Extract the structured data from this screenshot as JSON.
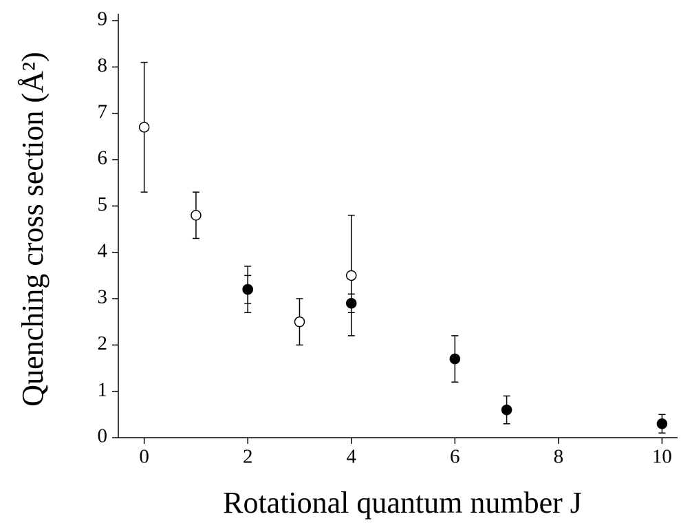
{
  "chart_data": {
    "type": "scatter",
    "xlabel": "Rotational quantum number J",
    "ylabel": "Quenching cross section (Å²)",
    "xlim": [
      -0.5,
      10.3
    ],
    "xticks": [
      0,
      2,
      4,
      6,
      8,
      10
    ],
    "ylim": [
      0,
      9
    ],
    "yticks": [
      0,
      1,
      2,
      3,
      4,
      5,
      6,
      7,
      8,
      9
    ],
    "grid": false,
    "series": [
      {
        "color": "#000000",
        "fill": "#ffffff",
        "x": [
          0,
          1,
          2,
          3,
          4
        ],
        "values": [
          6.7,
          4.8,
          3.2,
          2.5,
          3.5
        ],
        "errors": [
          1.4,
          0.5,
          0.5,
          0.5,
          1.3
        ]
      },
      {
        "color": "#000000",
        "fill": "#000000",
        "x": [
          2,
          4,
          6,
          7,
          10
        ],
        "values": [
          3.2,
          2.9,
          1.7,
          0.6,
          0.3
        ],
        "errors": [
          0.3,
          0.2,
          0.5,
          0.3,
          0.2
        ]
      }
    ]
  }
}
